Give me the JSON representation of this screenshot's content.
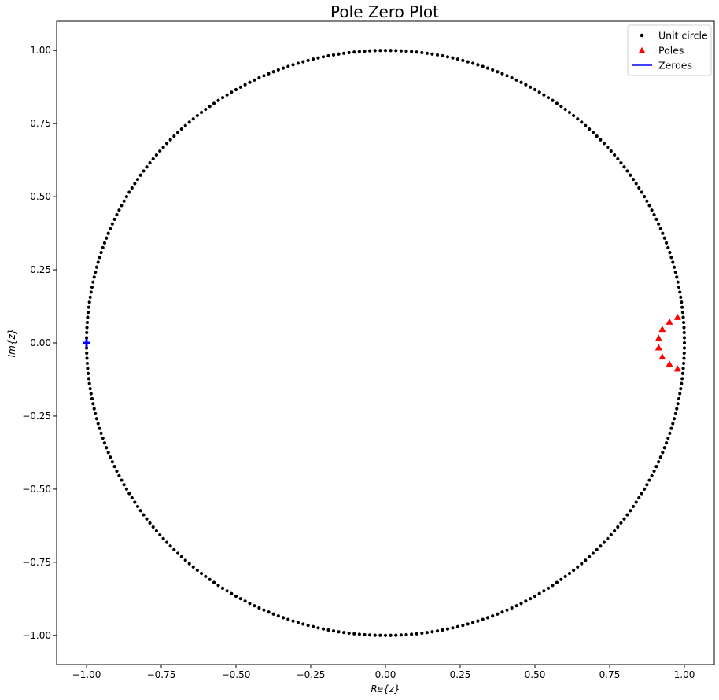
{
  "chart_data": {
    "type": "scatter",
    "title": "Pole Zero Plot",
    "xlabel": "Re{z}",
    "ylabel": "Im{z}",
    "xlim": [
      -1.1,
      1.1
    ],
    "ylim": [
      -1.1,
      1.1
    ],
    "x_ticks": [
      -1.0,
      -0.75,
      -0.5,
      -0.25,
      0.0,
      0.25,
      0.5,
      0.75,
      1.0
    ],
    "x_tick_labels": [
      "−1.00",
      "−0.75",
      "−0.50",
      "−0.25",
      "0.00",
      "0.25",
      "0.50",
      "0.75",
      "1.00"
    ],
    "y_ticks": [
      1.0,
      0.75,
      0.5,
      0.25,
      0.0,
      -0.25,
      -0.5,
      -0.75,
      -1.0
    ],
    "y_tick_labels": [
      "1.00",
      "0.75",
      "0.50",
      "0.25",
      "0.00",
      "−0.25",
      "−0.50",
      "−0.75",
      "−1.00"
    ],
    "grid": false,
    "legend_position": "top-right",
    "series": [
      {
        "name": "Unit circle",
        "marker": "dot",
        "color": "#000000",
        "parametric": "unit_circle",
        "count": 360
      },
      {
        "name": "Poles",
        "marker": "triangle",
        "color": "#ff0000",
        "points": [
          [
            0.977,
            0.088
          ],
          [
            0.95,
            0.072
          ],
          [
            0.926,
            0.047
          ],
          [
            0.914,
            0.016
          ],
          [
            0.914,
            -0.016
          ],
          [
            0.926,
            -0.047
          ],
          [
            0.95,
            -0.072
          ],
          [
            0.977,
            -0.088
          ]
        ]
      },
      {
        "name": "Zeroes",
        "marker": "plus",
        "color": "#0000ff",
        "points": [
          [
            -1.0,
            0.0
          ],
          [
            -1.0,
            0.0
          ],
          [
            -1.0,
            0.0
          ],
          [
            -1.0,
            0.0
          ],
          [
            -1.0,
            0.0
          ],
          [
            -1.0,
            0.0
          ],
          [
            -1.0,
            0.0
          ],
          [
            -1.0,
            0.0
          ]
        ]
      }
    ]
  }
}
